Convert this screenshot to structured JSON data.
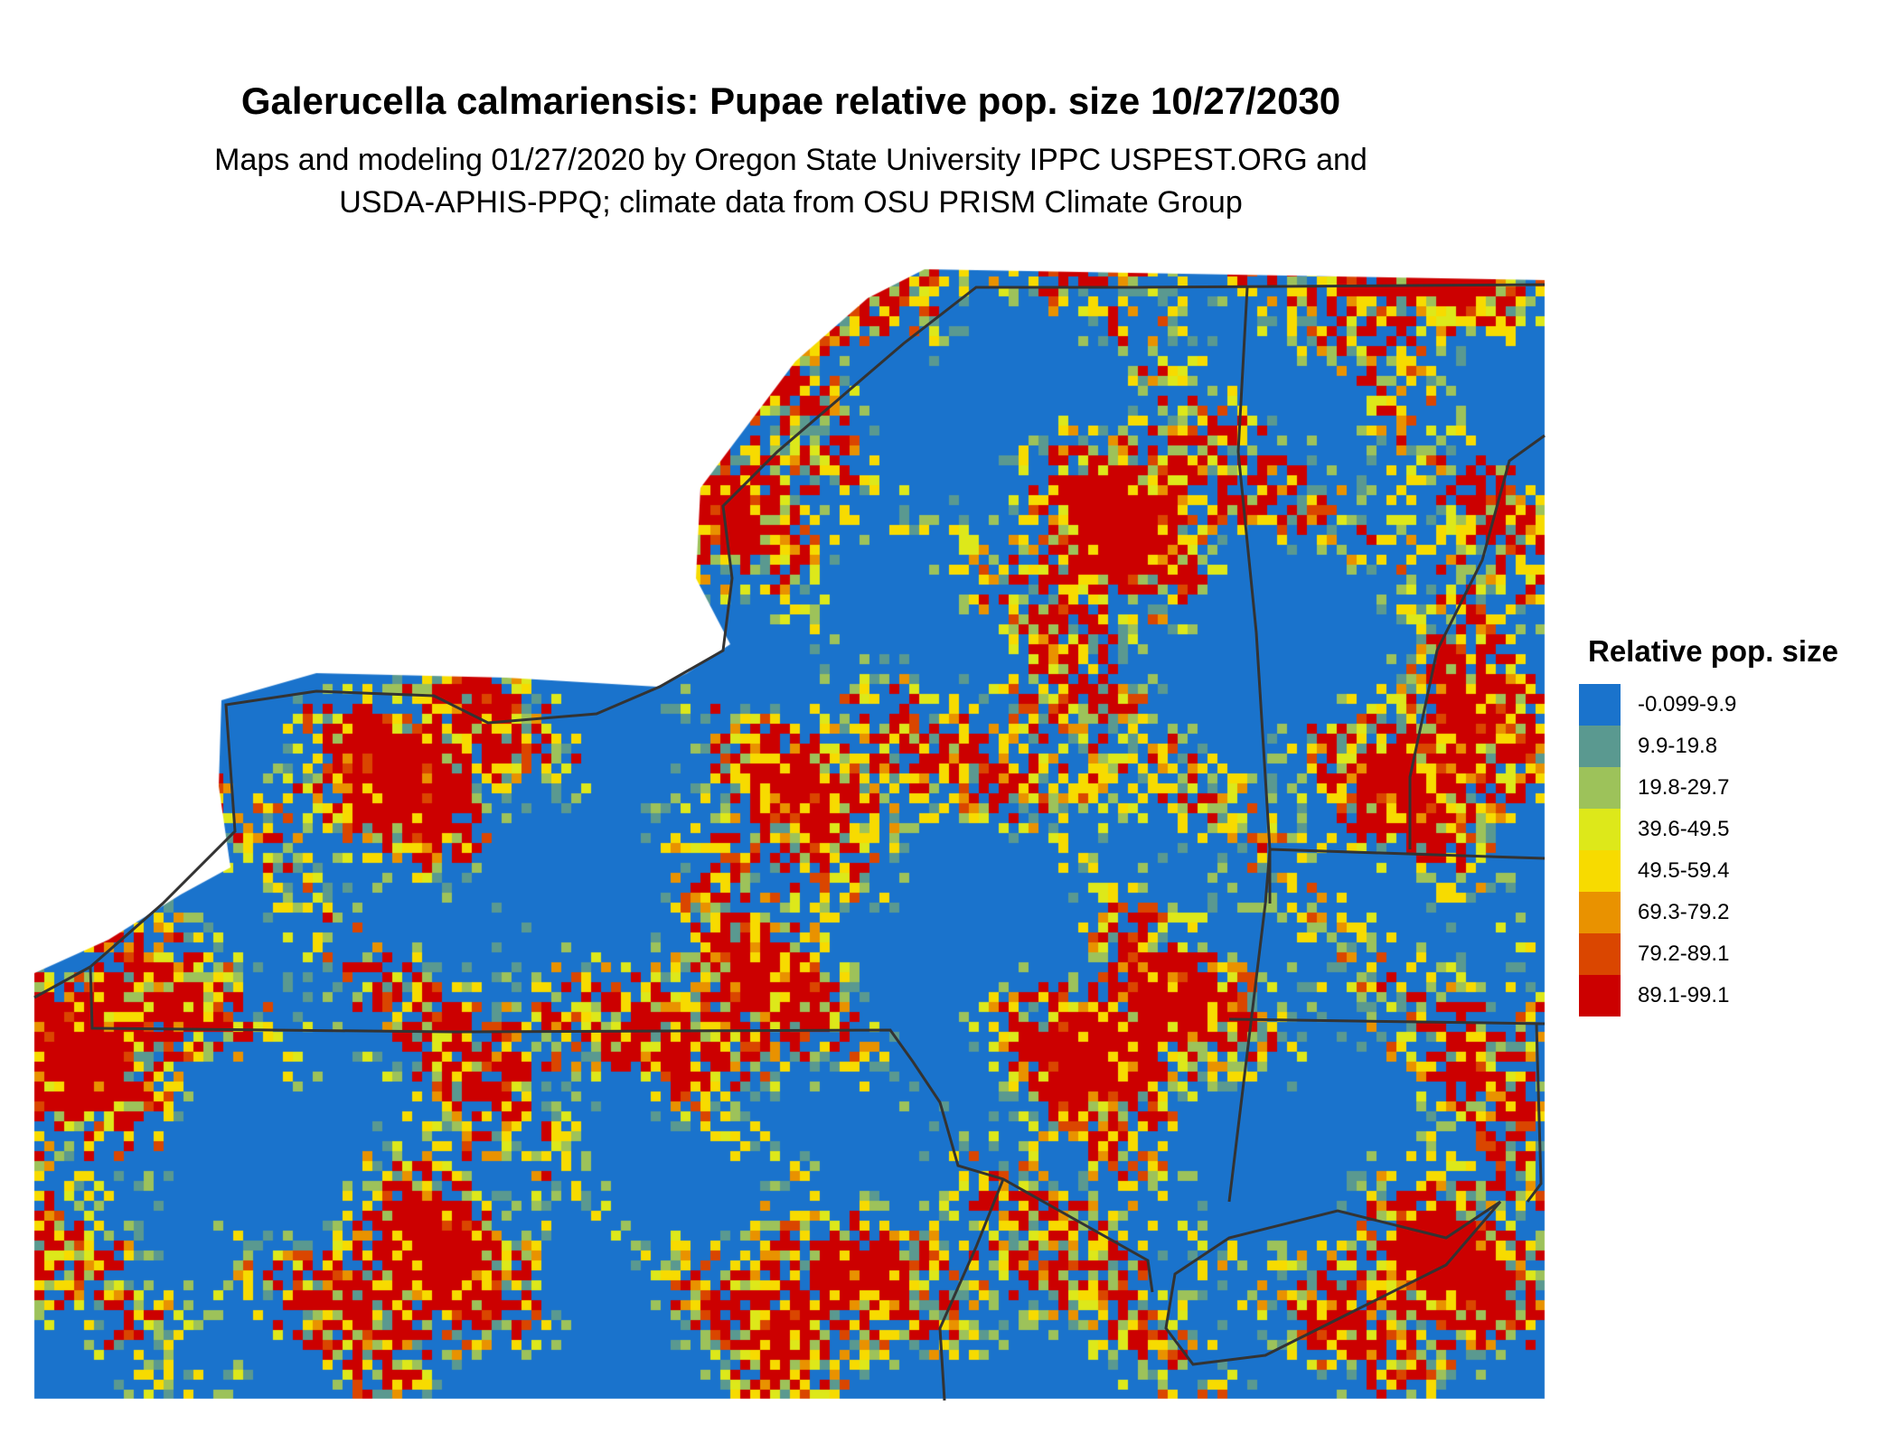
{
  "title": "Galerucella calmariensis: Pupae relative pop. size 10/27/2030",
  "subtitle_lines": [
    "Maps and modeling 01/27/2020 by Oregon State University IPPC USPEST.ORG and",
    "USDA-APHIS-PPQ; climate data from OSU PRISM Climate Group"
  ],
  "legend": {
    "title": "Relative pop. size",
    "items": [
      {
        "label": "-0.099-9.9",
        "color": "#1a73cc"
      },
      {
        "label": "9.9-19.8",
        "color": "#5a9990"
      },
      {
        "label": "19.8-29.7",
        "color": "#9dc25a"
      },
      {
        "label": "39.6-49.5",
        "color": "#dde81a"
      },
      {
        "label": "49.5-59.4",
        "color": "#f7db00"
      },
      {
        "label": "69.3-79.2",
        "color": "#e99200"
      },
      {
        "label": "79.2-89.1",
        "color": "#da4600"
      },
      {
        "label": "89.1-99.1",
        "color": "#cc0000"
      }
    ]
  },
  "map": {
    "border_color": "#333333",
    "background": "#ffffff"
  }
}
